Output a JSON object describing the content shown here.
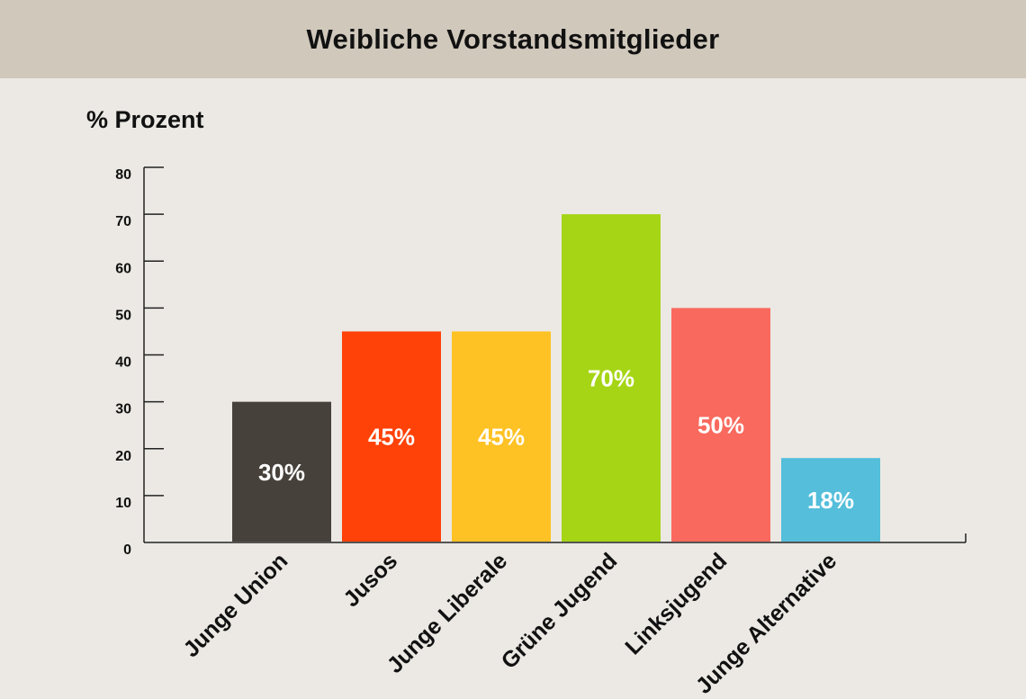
{
  "header": {
    "title": "Weibliche Vorstandsmitglieder"
  },
  "y_unit_label": "% Prozent",
  "chart_data": {
    "type": "bar",
    "title": "Weibliche Vorstandsmitglieder",
    "ylabel": "% Prozent",
    "xlabel": "",
    "ylim": [
      0,
      80
    ],
    "yticks": [
      0,
      10,
      20,
      30,
      40,
      50,
      60,
      70,
      80
    ],
    "categories": [
      "Junge Union",
      "Jusos",
      "Junge Liberale",
      "Grüne Jugend",
      "Linksjugend",
      "Junge Alternative"
    ],
    "values": [
      30,
      45,
      45,
      70,
      50,
      18
    ],
    "data_labels": [
      "30%",
      "45%",
      "45%",
      "70%",
      "50%",
      "18%"
    ],
    "colors": [
      "#46413b",
      "#ff4208",
      "#ffc224",
      "#a6d516",
      "#f9695d",
      "#54bedb"
    ],
    "grid": false,
    "legend": "none"
  }
}
